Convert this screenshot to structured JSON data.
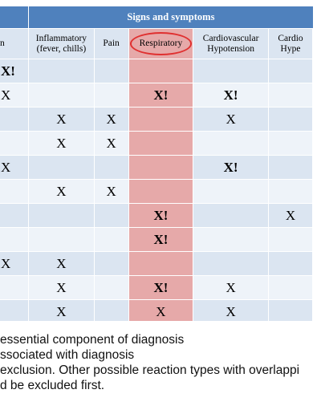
{
  "banner": {
    "title": "Signs and symptoms"
  },
  "headers": {
    "skin": "kin",
    "inflammatory": "Inflammatory (fever, chills)",
    "pain": "Pain",
    "respiratory": "Respiratory",
    "cardiovascular": "Cardiovascular Hypotension",
    "cardio2": "Cardio Hype"
  },
  "rows": [
    {
      "skin": "X!",
      "infl": "",
      "pain": "",
      "resp": "",
      "cv": "",
      "cv2": ""
    },
    {
      "skin": "X",
      "infl": "",
      "pain": "",
      "resp": "X!",
      "cv": "X!",
      "cv2": ""
    },
    {
      "skin": "",
      "infl": "X",
      "pain": "X",
      "resp": "",
      "cv": "X",
      "cv2": ""
    },
    {
      "skin": "",
      "infl": "X",
      "pain": "X",
      "resp": "",
      "cv": "",
      "cv2": ""
    },
    {
      "skin": "X",
      "infl": "",
      "pain": "",
      "resp": "",
      "cv": "X!",
      "cv2": ""
    },
    {
      "skin": "",
      "infl": "X",
      "pain": "X",
      "resp": "",
      "cv": "",
      "cv2": ""
    },
    {
      "skin": "",
      "infl": "",
      "pain": "",
      "resp": "X!",
      "cv": "",
      "cv2": "X"
    },
    {
      "skin": "",
      "infl": "",
      "pain": "",
      "resp": "X!",
      "cv": "",
      "cv2": ""
    },
    {
      "skin": "X",
      "infl": "X",
      "pain": "",
      "resp": "",
      "cv": "",
      "cv2": ""
    },
    {
      "skin": "",
      "infl": "X",
      "pain": "",
      "resp": "X!",
      "cv": "X",
      "cv2": ""
    },
    {
      "skin": "",
      "infl": "X",
      "pain": "",
      "resp": "X",
      "cv": "X",
      "cv2": ""
    }
  ],
  "legend": {
    "line1": "essential component of diagnosis",
    "line2": "ssociated with diagnosis",
    "line3": "exclusion.  Other possible reaction types with overlappi",
    "line4": "d be excluded first."
  },
  "colors": {
    "banner": "#4f81bd",
    "row_dark": "#dbe5f1",
    "row_light": "#eef3f9",
    "respiratory_highlight": "#e6a9a9",
    "circle": "#e03030"
  }
}
